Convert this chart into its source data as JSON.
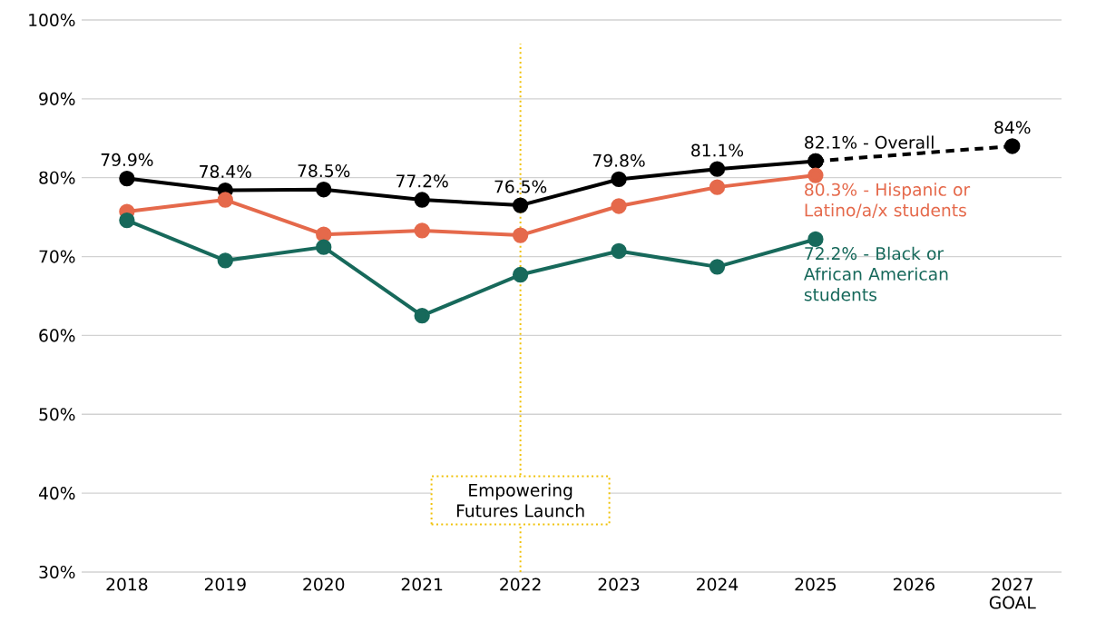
{
  "chart_data": {
    "type": "line",
    "categories": [
      "2018",
      "2019",
      "2020",
      "2021",
      "2022",
      "2023",
      "2024",
      "2025",
      "2026",
      "2027 GOAL"
    ],
    "series": [
      {
        "color": "#000000",
        "values": [
          79.9,
          78.4,
          78.5,
          77.2,
          76.5,
          79.8,
          81.1,
          82.1,
          null,
          null
        ],
        "value_labels": [
          "79.9%",
          "78.4%",
          "78.5%",
          "77.2%",
          "76.5%",
          "79.8%",
          "81.1%",
          "82.1% - Overall",
          null,
          null
        ]
      },
      {
        "color": "#000000",
        "line_style": "dashed",
        "values": [
          null,
          null,
          null,
          null,
          null,
          null,
          null,
          82.1,
          null,
          84
        ],
        "value_labels": [
          null,
          null,
          null,
          null,
          null,
          null,
          null,
          null,
          null,
          "84%"
        ]
      },
      {
        "color": "#e5694b",
        "values": [
          75.7,
          77.2,
          72.8,
          73.3,
          72.7,
          76.4,
          78.8,
          80.3,
          null,
          null
        ],
        "value_labels": [
          null,
          null,
          null,
          null,
          null,
          null,
          null,
          "80.3% - Hispanic or Latino/a/x students",
          null,
          null
        ]
      },
      {
        "color": "#17695b",
        "values": [
          74.6,
          69.5,
          71.2,
          62.5,
          67.7,
          70.7,
          68.7,
          72.2,
          null,
          null
        ],
        "value_labels": [
          null,
          null,
          null,
          null,
          null,
          null,
          null,
          "72.2% - Black or African American students",
          null,
          null
        ]
      }
    ],
    "ylim": [
      30,
      100
    ],
    "yticks": [
      {
        "value": 30,
        "label": "30%"
      },
      {
        "value": 40,
        "label": "40%"
      },
      {
        "value": 50,
        "label": "50%"
      },
      {
        "value": 60,
        "label": "60%"
      },
      {
        "value": 70,
        "label": "70%"
      },
      {
        "value": 80,
        "label": "80%"
      },
      {
        "value": 90,
        "label": "90%"
      },
      {
        "value": 100,
        "label": "100%"
      }
    ],
    "grid": "y",
    "marker": "circle",
    "line_style": "solid",
    "ref_lines": [
      {
        "axis": "x",
        "value": "2022",
        "label": "Empowering Futures Launch",
        "color": "#f0c20a",
        "line_style": "dotted"
      }
    ]
  }
}
